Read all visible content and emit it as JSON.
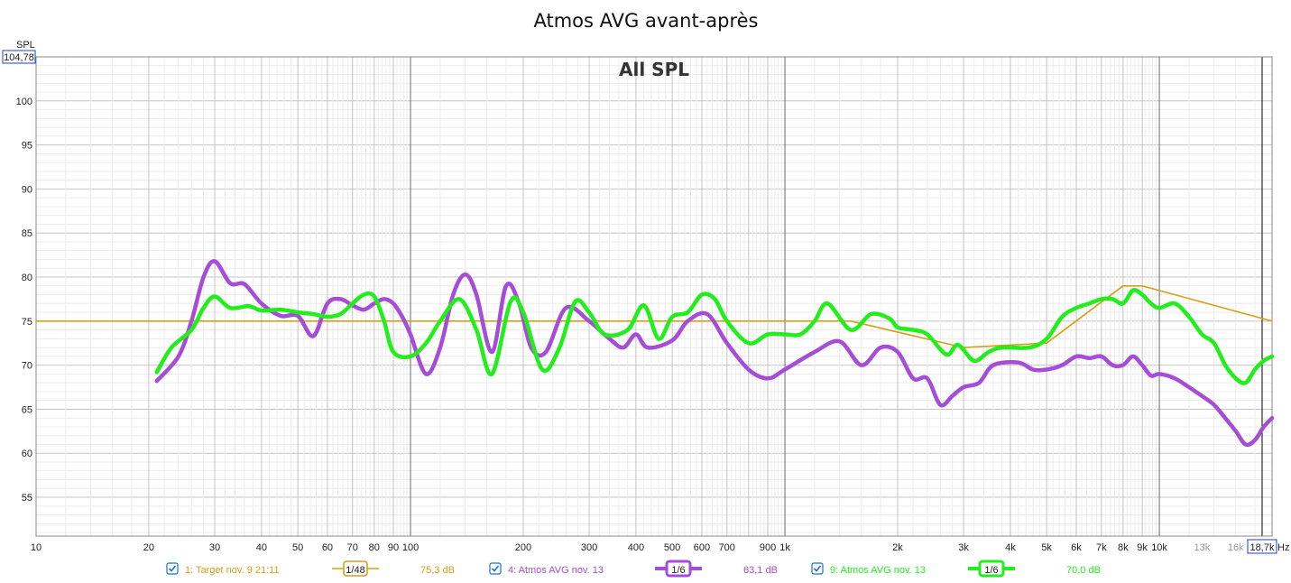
{
  "chart_data": {
    "type": "line",
    "title": "Atmos AVG avant-après",
    "subtitle": "All SPL",
    "ylabel": "SPL",
    "xlabel": "Hz",
    "x_scale": "log",
    "xlim": [
      10,
      20000
    ],
    "ylim": [
      50.6,
      105
    ],
    "y_cursor_readout": "104,78",
    "x_cursor_readout": "18,7k",
    "y_ticks": [
      55,
      60,
      65,
      70,
      75,
      80,
      85,
      90,
      95,
      100
    ],
    "x_ticks": [
      {
        "v": 10,
        "l": "10"
      },
      {
        "v": 20,
        "l": "20"
      },
      {
        "v": 30,
        "l": "30"
      },
      {
        "v": 40,
        "l": "40"
      },
      {
        "v": 50,
        "l": "50"
      },
      {
        "v": 60,
        "l": "60"
      },
      {
        "v": 70,
        "l": "70"
      },
      {
        "v": 80,
        "l": "80"
      },
      {
        "v": 90,
        "l": "90"
      },
      {
        "v": 100,
        "l": "100"
      },
      {
        "v": 200,
        "l": "200"
      },
      {
        "v": 300,
        "l": "300"
      },
      {
        "v": 400,
        "l": "400"
      },
      {
        "v": 500,
        "l": "500"
      },
      {
        "v": 600,
        "l": "600"
      },
      {
        "v": 700,
        "l": "700"
      },
      {
        "v": 900,
        "l": "900"
      },
      {
        "v": 1000,
        "l": "1k"
      },
      {
        "v": 2000,
        "l": "2k"
      },
      {
        "v": 3000,
        "l": "3k"
      },
      {
        "v": 4000,
        "l": "4k"
      },
      {
        "v": 5000,
        "l": "5k"
      },
      {
        "v": 6000,
        "l": "6k"
      },
      {
        "v": 7000,
        "l": "7k"
      },
      {
        "v": 8000,
        "l": "8k"
      },
      {
        "v": 9000,
        "l": "9k"
      },
      {
        "v": 10000,
        "l": "10k"
      },
      {
        "v": 13000,
        "l": "13k"
      },
      {
        "v": 16000,
        "l": "16k"
      }
    ],
    "grid": true,
    "series": [
      {
        "name": "1: Target nov. 9 21:11",
        "color": "#d4a017",
        "smoothing": "1/48",
        "level": "75,3 dB",
        "points": [
          [
            10,
            75
          ],
          [
            1500,
            75
          ],
          [
            3000,
            72
          ],
          [
            5000,
            72.5
          ],
          [
            8000,
            79
          ],
          [
            9000,
            79
          ],
          [
            20000,
            75
          ]
        ]
      },
      {
        "name": "4: Atmos AVG nov. 13",
        "color": "#a64dd8",
        "smoothing": "1/6",
        "level": "63,1 dB",
        "points": [
          [
            21,
            68.2
          ],
          [
            24,
            71
          ],
          [
            26,
            75
          ],
          [
            28,
            80
          ],
          [
            30,
            81.8
          ],
          [
            33,
            79.3
          ],
          [
            36,
            79.2
          ],
          [
            40,
            77
          ],
          [
            45,
            75.6
          ],
          [
            50,
            75.6
          ],
          [
            55,
            73.3
          ],
          [
            60,
            77
          ],
          [
            65,
            77.5
          ],
          [
            70,
            76.8
          ],
          [
            75,
            76.3
          ],
          [
            80,
            77
          ],
          [
            85,
            77.5
          ],
          [
            90,
            77
          ],
          [
            95,
            75.5
          ],
          [
            100,
            73.5
          ],
          [
            110,
            69
          ],
          [
            120,
            72
          ],
          [
            130,
            78
          ],
          [
            140,
            80.3
          ],
          [
            150,
            78
          ],
          [
            165,
            71.5
          ],
          [
            180,
            79
          ],
          [
            195,
            77
          ],
          [
            210,
            72
          ],
          [
            230,
            71.5
          ],
          [
            260,
            76.5
          ],
          [
            300,
            75
          ],
          [
            340,
            73
          ],
          [
            370,
            72
          ],
          [
            400,
            73.5
          ],
          [
            430,
            72
          ],
          [
            500,
            72.8
          ],
          [
            550,
            75
          ],
          [
            620,
            75.8
          ],
          [
            700,
            72.5
          ],
          [
            800,
            69.5
          ],
          [
            900,
            68.5
          ],
          [
            1000,
            69.5
          ],
          [
            1200,
            71.5
          ],
          [
            1400,
            72.7
          ],
          [
            1600,
            70
          ],
          [
            1800,
            72
          ],
          [
            2000,
            71.5
          ],
          [
            2200,
            68.5
          ],
          [
            2400,
            68.5
          ],
          [
            2600,
            65.5
          ],
          [
            2800,
            66.5
          ],
          [
            3000,
            67.5
          ],
          [
            3300,
            68
          ],
          [
            3600,
            70
          ],
          [
            4200,
            70.3
          ],
          [
            4600,
            69.5
          ],
          [
            5000,
            69.5
          ],
          [
            5500,
            70
          ],
          [
            6000,
            71
          ],
          [
            6500,
            70.8
          ],
          [
            7000,
            71
          ],
          [
            7500,
            70
          ],
          [
            8000,
            70
          ],
          [
            8500,
            71
          ],
          [
            9000,
            70
          ],
          [
            9500,
            68.8
          ],
          [
            10000,
            69
          ],
          [
            11000,
            68.5
          ],
          [
            12000,
            67.5
          ],
          [
            13000,
            66.5
          ],
          [
            14000,
            65.5
          ],
          [
            15000,
            64
          ],
          [
            16000,
            62.5
          ],
          [
            17000,
            61
          ],
          [
            18000,
            61.5
          ],
          [
            19000,
            63
          ],
          [
            20000,
            64
          ]
        ]
      },
      {
        "name": "9: Atmos AVG nov. 13",
        "color": "#22ee1c",
        "smoothing": "1/6",
        "level": "70,0 dB",
        "points": [
          [
            21,
            69.2
          ],
          [
            23,
            72
          ],
          [
            26,
            74
          ],
          [
            28,
            76.5
          ],
          [
            30,
            77.8
          ],
          [
            33,
            76.5
          ],
          [
            37,
            76.7
          ],
          [
            40,
            76.2
          ],
          [
            45,
            76.3
          ],
          [
            50,
            76
          ],
          [
            55,
            75.8
          ],
          [
            60,
            75.5
          ],
          [
            65,
            75.8
          ],
          [
            70,
            77
          ],
          [
            75,
            78
          ],
          [
            80,
            77.8
          ],
          [
            85,
            75
          ],
          [
            90,
            71.5
          ],
          [
            100,
            71
          ],
          [
            110,
            72.5
          ],
          [
            120,
            75
          ],
          [
            135,
            77.5
          ],
          [
            150,
            74
          ],
          [
            165,
            69
          ],
          [
            185,
            77.2
          ],
          [
            200,
            76
          ],
          [
            225,
            69.5
          ],
          [
            250,
            72
          ],
          [
            275,
            77.2
          ],
          [
            300,
            76
          ],
          [
            330,
            73.5
          ],
          [
            380,
            74
          ],
          [
            420,
            76.8
          ],
          [
            460,
            73
          ],
          [
            500,
            75.5
          ],
          [
            550,
            76
          ],
          [
            600,
            78
          ],
          [
            650,
            77.5
          ],
          [
            700,
            75
          ],
          [
            800,
            72.5
          ],
          [
            900,
            73.5
          ],
          [
            1000,
            73.5
          ],
          [
            1100,
            73.5
          ],
          [
            1200,
            75
          ],
          [
            1300,
            77
          ],
          [
            1500,
            74
          ],
          [
            1700,
            75.8
          ],
          [
            1900,
            75.3
          ],
          [
            2000,
            74.3
          ],
          [
            2200,
            74
          ],
          [
            2400,
            73.5
          ],
          [
            2700,
            71.2
          ],
          [
            2900,
            72.3
          ],
          [
            3200,
            70.5
          ],
          [
            3500,
            71.5
          ],
          [
            3800,
            72
          ],
          [
            4500,
            72
          ],
          [
            5000,
            73
          ],
          [
            5500,
            75.5
          ],
          [
            6000,
            76.5
          ],
          [
            6500,
            77
          ],
          [
            7000,
            77.5
          ],
          [
            7500,
            77.5
          ],
          [
            8000,
            77
          ],
          [
            8500,
            78.5
          ],
          [
            9000,
            78
          ],
          [
            9500,
            77
          ],
          [
            10000,
            76.5
          ],
          [
            11000,
            77
          ],
          [
            12000,
            75.5
          ],
          [
            13000,
            73.5
          ],
          [
            14000,
            72.5
          ],
          [
            15000,
            70
          ],
          [
            16000,
            68.5
          ],
          [
            17000,
            68
          ],
          [
            18000,
            69.5
          ],
          [
            19000,
            70.5
          ],
          [
            20000,
            71
          ]
        ]
      }
    ]
  }
}
